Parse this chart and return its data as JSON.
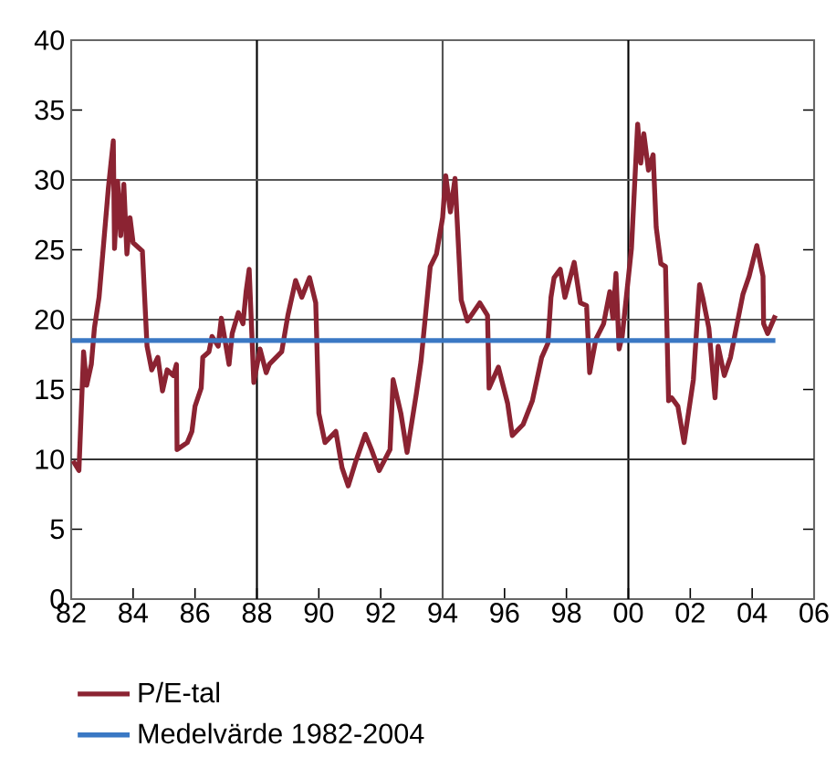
{
  "chart_data": {
    "type": "line",
    "xlim": [
      1982,
      2006
    ],
    "ylim": [
      0,
      40
    ],
    "xticks": [
      {
        "value": 1982,
        "label": "82"
      },
      {
        "value": 1984,
        "label": "84"
      },
      {
        "value": 1986,
        "label": "86"
      },
      {
        "value": 1988,
        "label": "88"
      },
      {
        "value": 1990,
        "label": "90"
      },
      {
        "value": 1992,
        "label": "92"
      },
      {
        "value": 1994,
        "label": "94"
      },
      {
        "value": 1996,
        "label": "96"
      },
      {
        "value": 1998,
        "label": "98"
      },
      {
        "value": 2000,
        "label": "00"
      },
      {
        "value": 2002,
        "label": "02"
      },
      {
        "value": 2004,
        "label": "04"
      },
      {
        "value": 2006,
        "label": "06"
      }
    ],
    "yticks": [
      0,
      5,
      10,
      15,
      20,
      25,
      30,
      35,
      40
    ],
    "legend": "bottom",
    "marker": "none",
    "ref_lines": [
      {
        "axis": "x",
        "value": 1988,
        "color": "#000000"
      },
      {
        "axis": "x",
        "value": 1994,
        "color": "#555555"
      },
      {
        "axis": "x",
        "value": 2000,
        "color": "#000000"
      },
      {
        "axis": "y",
        "value": 10,
        "color": "#333333"
      },
      {
        "axis": "y",
        "value": 20,
        "color": "#555555"
      },
      {
        "axis": "y",
        "value": 30,
        "color": "#555555"
      }
    ],
    "series": [
      {
        "name": "P/E-tal",
        "color": "#8b2332",
        "x": [
          1982.06,
          1982.25,
          1982.4,
          1982.5,
          1982.65,
          1982.75,
          1982.9,
          1983.0,
          1983.2,
          1983.36,
          1983.4,
          1983.5,
          1983.6,
          1983.7,
          1983.8,
          1983.9,
          1984.0,
          1984.3,
          1984.45,
          1984.6,
          1984.8,
          1984.95,
          1985.1,
          1985.3,
          1985.4,
          1985.42,
          1985.75,
          1985.9,
          1986.0,
          1986.2,
          1986.25,
          1986.45,
          1986.55,
          1986.75,
          1986.85,
          1987.1,
          1987.2,
          1987.4,
          1987.55,
          1987.65,
          1987.75,
          1987.9,
          1988.1,
          1988.3,
          1988.4,
          1988.8,
          1989.0,
          1989.25,
          1989.45,
          1989.7,
          1989.9,
          1990.0,
          1990.2,
          1990.55,
          1990.75,
          1990.95,
          1991.2,
          1991.5,
          1991.7,
          1991.95,
          1992.3,
          1992.4,
          1992.65,
          1992.85,
          1993.15,
          1993.3,
          1993.6,
          1993.8,
          1994.0,
          1994.1,
          1994.25,
          1994.4,
          1994.6,
          1994.8,
          1995.2,
          1995.45,
          1995.5,
          1995.8,
          1996.1,
          1996.25,
          1996.6,
          1996.9,
          1997.2,
          1997.4,
          1997.5,
          1997.6,
          1997.8,
          1997.95,
          1998.25,
          1998.45,
          1998.65,
          1998.75,
          1998.95,
          1999.2,
          1999.4,
          1999.5,
          1999.6,
          1999.7,
          1999.8,
          2000.1,
          2000.3,
          2000.4,
          2000.5,
          2000.65,
          2000.8,
          2000.9,
          2001.05,
          2001.2,
          2001.3,
          2001.4,
          2001.6,
          2001.8,
          2002.1,
          2002.3,
          2002.4,
          2002.6,
          2002.8,
          2002.9,
          2003.1,
          2003.3,
          2003.45,
          2003.7,
          2003.9,
          2004.15,
          2004.35,
          2004.37,
          2004.5,
          2004.75
        ],
        "values": [
          9.9,
          9.2,
          17.7,
          15.3,
          16.8,
          19.4,
          21.6,
          24.2,
          29.4,
          32.8,
          25.1,
          29.9,
          26.0,
          29.7,
          24.7,
          27.3,
          25.5,
          24.9,
          18.1,
          16.4,
          17.3,
          14.9,
          16.4,
          16.0,
          16.8,
          10.7,
          11.2,
          12.0,
          13.8,
          15.1,
          17.3,
          17.7,
          18.8,
          18.1,
          20.1,
          16.8,
          19.0,
          20.5,
          19.7,
          22.0,
          23.6,
          15.5,
          17.9,
          16.2,
          16.8,
          17.7,
          20.3,
          22.8,
          21.6,
          23.0,
          21.2,
          13.3,
          11.2,
          12.0,
          9.4,
          8.1,
          9.9,
          11.8,
          10.7,
          9.2,
          10.7,
          15.7,
          13.3,
          10.5,
          14.7,
          17.0,
          23.8,
          24.7,
          27.3,
          30.3,
          27.7,
          30.1,
          21.4,
          19.9,
          21.2,
          20.3,
          15.1,
          16.6,
          14.0,
          11.7,
          12.5,
          14.2,
          17.3,
          18.3,
          21.6,
          23.0,
          23.6,
          21.6,
          24.1,
          21.2,
          21.0,
          16.2,
          18.6,
          19.7,
          22.0,
          20.1,
          23.3,
          17.9,
          18.8,
          25.1,
          34.0,
          31.2,
          33.3,
          30.7,
          31.8,
          26.6,
          24.0,
          23.8,
          14.2,
          14.4,
          13.8,
          11.2,
          15.7,
          22.5,
          21.6,
          19.4,
          14.4,
          18.1,
          16.0,
          17.3,
          19.0,
          21.8,
          23.1,
          25.3,
          23.1,
          19.7,
          19.0,
          20.3
        ]
      },
      {
        "name": "Medelvärde 1982-2004",
        "color": "#3a78c4",
        "x": [
          1982,
          2004.75
        ],
        "values": [
          18.5,
          18.5
        ]
      }
    ]
  }
}
